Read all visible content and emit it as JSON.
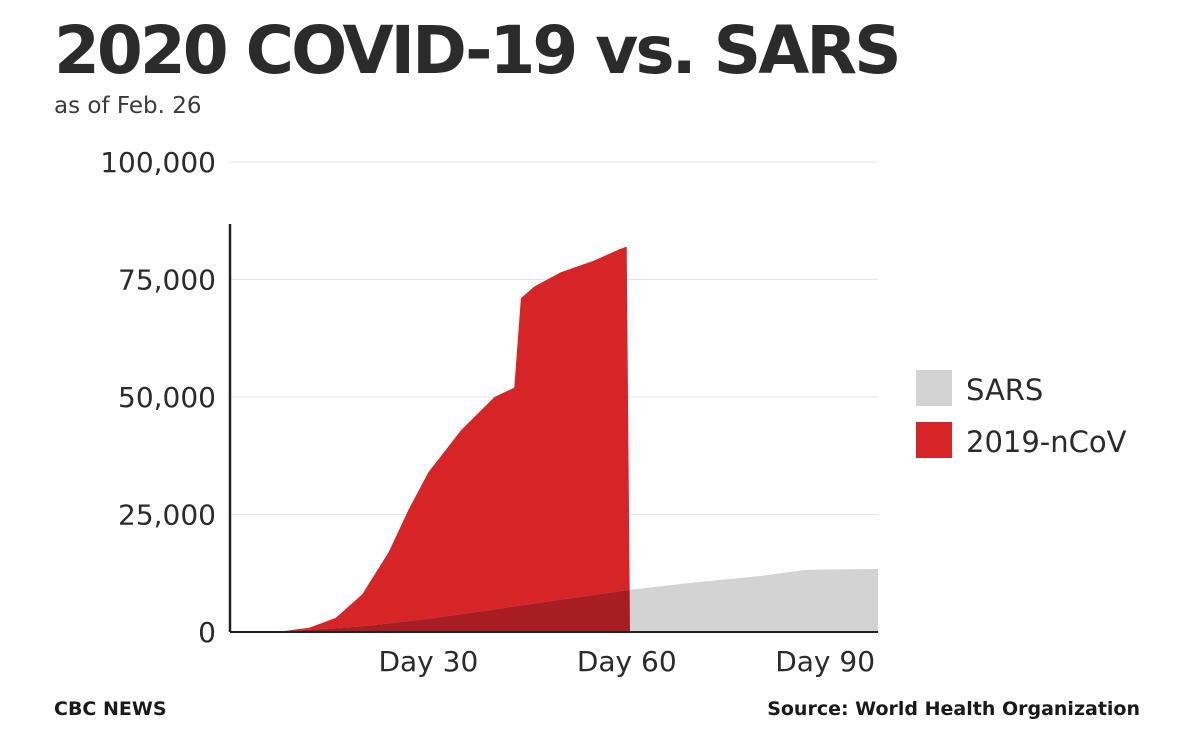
{
  "header": {
    "title": "2020 COVID-19 vs. SARS",
    "subtitle": "as of Feb. 26"
  },
  "footer": {
    "credit": "CBC NEWS",
    "source": "Source: World Health Organization"
  },
  "colors": {
    "sars": "#d3d3d3",
    "ncov": "#d62427",
    "overlap": "#a71d22",
    "gridline": "#e6e6e6",
    "axis": "#222222",
    "text": "#2b2b2b"
  },
  "chart_data": {
    "type": "area",
    "title": "2020 COVID-19 vs. SARS",
    "subtitle": "as of Feb. 26",
    "xlabel": "",
    "ylabel": "",
    "xlim": [
      0,
      98
    ],
    "ylim": [
      0,
      100000
    ],
    "x_ticks": [
      {
        "value": 30,
        "label": "Day 30"
      },
      {
        "value": 60,
        "label": "Day 60"
      },
      {
        "value": 90,
        "label": "Day 90"
      }
    ],
    "y_ticks": [
      {
        "value": 0,
        "label": "0"
      },
      {
        "value": 25000,
        "label": "25,000"
      },
      {
        "value": 50000,
        "label": "50,000"
      },
      {
        "value": 75000,
        "label": "75,000"
      },
      {
        "value": 100000,
        "label": "100,000"
      }
    ],
    "grid": true,
    "legend_position": "right",
    "series": [
      {
        "name": "SARS",
        "color": "#d3d3d3",
        "points": [
          [
            0,
            0
          ],
          [
            10,
            300
          ],
          [
            20,
            1200
          ],
          [
            30,
            2800
          ],
          [
            40,
            4800
          ],
          [
            50,
            6900
          ],
          [
            60,
            8900
          ],
          [
            70,
            10500
          ],
          [
            80,
            11900
          ],
          [
            87,
            13200
          ],
          [
            90,
            13300
          ],
          [
            98,
            13400
          ]
        ]
      },
      {
        "name": "2019-nCoV",
        "color": "#d62427",
        "points": [
          [
            0,
            0
          ],
          [
            8,
            200
          ],
          [
            12,
            900
          ],
          [
            16,
            3000
          ],
          [
            20,
            8000
          ],
          [
            24,
            17000
          ],
          [
            27,
            26000
          ],
          [
            30,
            34000
          ],
          [
            35,
            43000
          ],
          [
            40,
            50000
          ],
          [
            43,
            52000
          ],
          [
            44,
            71000
          ],
          [
            46,
            73500
          ],
          [
            50,
            76500
          ],
          [
            55,
            79000
          ],
          [
            59,
            81500
          ],
          [
            60,
            82000
          ],
          [
            60.5,
            0
          ]
        ]
      }
    ]
  }
}
